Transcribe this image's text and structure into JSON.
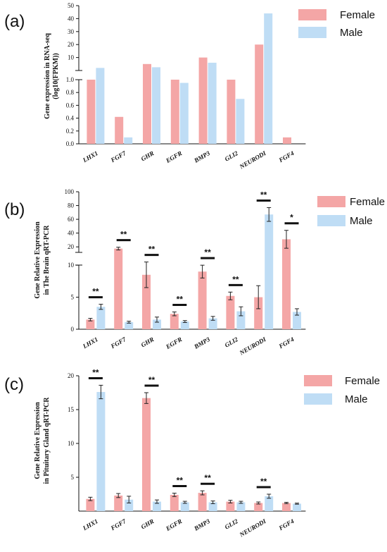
{
  "colors": {
    "female": "#F4A6A6",
    "male": "#BFDDF5",
    "axis": "#111111",
    "errorbar": "#222222"
  },
  "chart_data": [
    {
      "panel": "(a)",
      "type": "bar",
      "ylabel": [
        "Gene expression in RNA-seq",
        "(log10(FPKM))"
      ],
      "categories": [
        "LHX1",
        "FGF7",
        "GHR",
        "EGFR",
        "BMP3",
        "GLI2",
        "NEURODI",
        "FGF4"
      ],
      "axis_segments": [
        {
          "range": [
            0,
            1.0
          ],
          "ticks": [
            0.0,
            0.2,
            0.4,
            0.6,
            0.8,
            1.0
          ],
          "tick_labels": [
            "0.0",
            "0.2",
            "0.4",
            "0.6",
            "0.8",
            "1.0"
          ]
        },
        {
          "range": [
            0,
            50
          ],
          "ticks": [
            10,
            20,
            30,
            40,
            50
          ],
          "tick_labels": [
            "10",
            "20",
            "30",
            "40",
            "50"
          ]
        }
      ],
      "series": [
        {
          "name": "Female",
          "values": [
            1.0,
            0.42,
            5.0,
            1.0,
            10.0,
            1.0,
            20.0,
            0.1
          ]
        },
        {
          "name": "Male",
          "values": [
            2.0,
            0.1,
            2.5,
            0.95,
            6.0,
            0.7,
            44.0,
            null
          ]
        }
      ],
      "legend": [
        "Female",
        "Male"
      ],
      "legend_position": "top-right"
    },
    {
      "panel": "(b)",
      "type": "bar",
      "ylabel": [
        "Gene Relative Expression",
        "in The Brain qRT-PCR"
      ],
      "categories": [
        "LHX1",
        "FGF7",
        "GHR",
        "EGFR",
        "BMP3",
        "GLI2",
        "NEURODI",
        "FGF4"
      ],
      "axis_segments": [
        {
          "range": [
            0,
            12
          ],
          "ticks": [
            0,
            5,
            10
          ],
          "tick_labels": [
            "0",
            "5",
            "10"
          ]
        },
        {
          "range": [
            12,
            100
          ],
          "ticks": [
            20,
            40,
            60,
            80,
            100
          ],
          "tick_labels": [
            "20",
            "40",
            "60",
            "80",
            "100"
          ]
        }
      ],
      "series": [
        {
          "name": "Female",
          "values": [
            1.5,
            17.5,
            8.5,
            2.4,
            9.0,
            5.2,
            5.0,
            31.0
          ],
          "errors": [
            0.2,
            2.0,
            2.0,
            0.3,
            1.0,
            0.6,
            1.8,
            13.0
          ]
        },
        {
          "name": "Male",
          "values": [
            3.5,
            1.1,
            1.5,
            1.2,
            1.7,
            2.8,
            67.0,
            2.7
          ],
          "errors": [
            0.4,
            0.15,
            0.4,
            0.15,
            0.3,
            0.7,
            10.0,
            0.5
          ]
        }
      ],
      "significance": [
        "**",
        "**",
        "**",
        "**",
        "**",
        "**",
        "**",
        "*"
      ],
      "legend": [
        "Female",
        "Male"
      ],
      "legend_position": "top-right"
    },
    {
      "panel": "(c)",
      "type": "bar",
      "ylabel": [
        "Gene Relative Expression",
        "in Pituitary Gland qRT-PCR"
      ],
      "categories": [
        "LHX1",
        "FGF7",
        "GHR",
        "EGFR",
        "BMP3",
        "GLI2",
        "NEURODI",
        "FGF4"
      ],
      "ylim": [
        0,
        20
      ],
      "ticks": [
        5,
        10,
        15,
        20
      ],
      "tick_labels": [
        "5",
        "10",
        "15",
        "20"
      ],
      "series": [
        {
          "name": "Female",
          "values": [
            1.8,
            2.3,
            16.7,
            2.4,
            2.7,
            1.4,
            1.2,
            1.2
          ],
          "errors": [
            0.25,
            0.3,
            0.8,
            0.25,
            0.3,
            0.2,
            0.15,
            0.1
          ]
        },
        {
          "name": "Male",
          "values": [
            17.6,
            1.7,
            1.4,
            1.3,
            1.3,
            1.3,
            2.2,
            1.1
          ],
          "errors": [
            1.0,
            0.5,
            0.25,
            0.15,
            0.2,
            0.15,
            0.3,
            0.08
          ]
        }
      ],
      "significance": [
        "**",
        null,
        "**",
        "**",
        "**",
        null,
        "**",
        null
      ],
      "legend": [
        "Female",
        "Male"
      ],
      "legend_position": "top-right"
    }
  ]
}
